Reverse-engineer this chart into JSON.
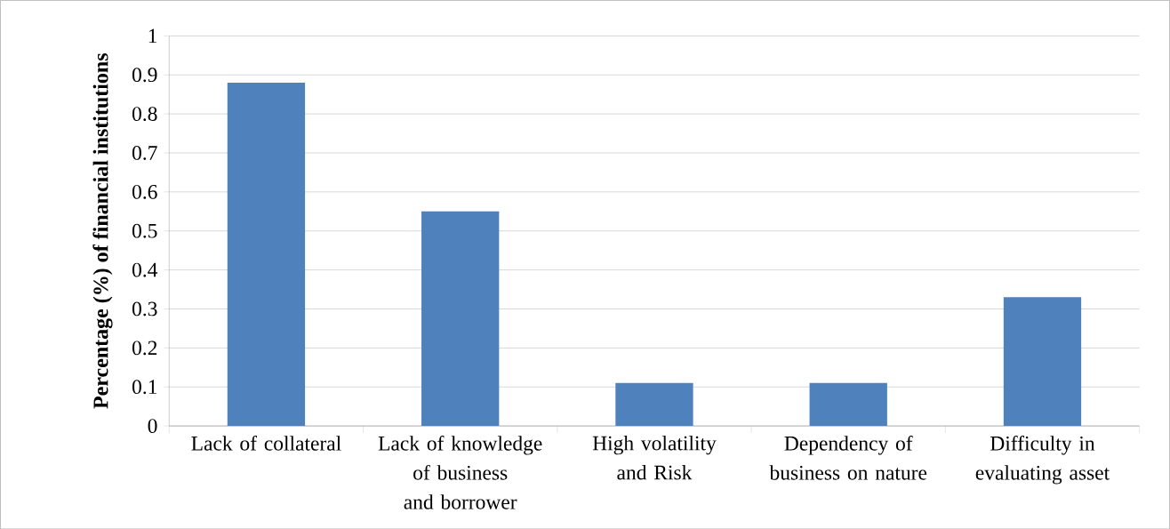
{
  "chart_data": {
    "type": "bar",
    "ylabel": "Percentage (%) of financial institutions",
    "categories": [
      "Lack of collateral",
      "Lack of knowledge of business and borrower",
      "High volatility and Risk",
      "Dependency of business on nature",
      "Difficulty in evaluating asset"
    ],
    "values": [
      0.88,
      0.55,
      0.11,
      0.11,
      0.33
    ],
    "color": "#4f81bd",
    "ylim": [
      0,
      1
    ],
    "yticks": [
      0,
      0.1,
      0.2,
      0.3,
      0.4,
      0.5,
      0.6,
      0.7,
      0.8,
      0.9,
      1
    ],
    "grid": "y"
  }
}
